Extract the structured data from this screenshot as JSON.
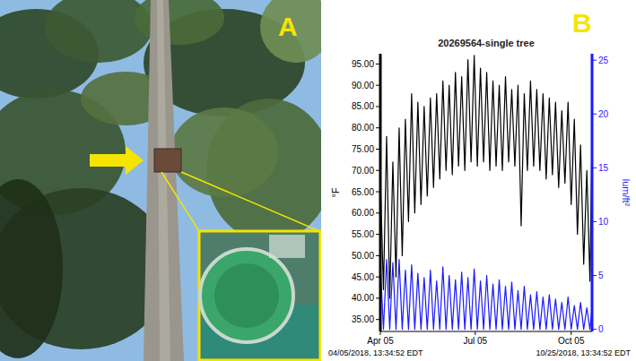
{
  "panel_labels": [
    "A",
    "B"
  ],
  "chart_data": {
    "type": "line",
    "title": "20269564-single tree",
    "y_label": "°F",
    "y2_label": "lum/ft²",
    "annotations": [
      "04/05/2018, 13:34:52 EDT",
      "10/25/2018, 13:34:52 EDT"
    ],
    "x": [
      "2018-04-05",
      "2018-04-08",
      "2018-04-11",
      "2018-04-14",
      "2018-04-17",
      "2018-04-20",
      "2018-04-23",
      "2018-04-26",
      "2018-04-29",
      "2018-05-02",
      "2018-05-05",
      "2018-05-08",
      "2018-05-11",
      "2018-05-14",
      "2018-05-17",
      "2018-05-20",
      "2018-05-23",
      "2018-05-26",
      "2018-05-29",
      "2018-06-01",
      "2018-06-04",
      "2018-06-07",
      "2018-06-10",
      "2018-06-13",
      "2018-06-16",
      "2018-06-19",
      "2018-06-22",
      "2018-06-25",
      "2018-06-28",
      "2018-07-01",
      "2018-07-04",
      "2018-07-07",
      "2018-07-10",
      "2018-07-13",
      "2018-07-16",
      "2018-07-19",
      "2018-07-22",
      "2018-07-25",
      "2018-07-28",
      "2018-07-31",
      "2018-08-03",
      "2018-08-06",
      "2018-08-09",
      "2018-08-12",
      "2018-08-15",
      "2018-08-18",
      "2018-08-21",
      "2018-08-24",
      "2018-08-27",
      "2018-08-30",
      "2018-09-02",
      "2018-09-05",
      "2018-09-08",
      "2018-09-11",
      "2018-09-14",
      "2018-09-17",
      "2018-09-20",
      "2018-09-23",
      "2018-09-26",
      "2018-09-29",
      "2018-10-02",
      "2018-10-05",
      "2018-10-08",
      "2018-10-11",
      "2018-10-14",
      "2018-10-17",
      "2018-10-20",
      "2018-10-23",
      "2018-10-25"
    ],
    "series": [
      {
        "color": "#000000",
        "axis": "y",
        "values": [
          68,
          42,
          78,
          40,
          72,
          45,
          80,
          50,
          82,
          58,
          88,
          60,
          86,
          62,
          85,
          64,
          87,
          66,
          88,
          68,
          91,
          70,
          90,
          69,
          93,
          71,
          92,
          70,
          96,
          72,
          97,
          71,
          94,
          72,
          93,
          70,
          91,
          71,
          90,
          70,
          92,
          72,
          89,
          71,
          90,
          57,
          88,
          70,
          91,
          71,
          89,
          70,
          88,
          68,
          87,
          69,
          86,
          66,
          84,
          67,
          86,
          62,
          82,
          55,
          76,
          48,
          70,
          44,
          78
        ]
      },
      {
        "color": "#1a1aff",
        "axis": "y2",
        "values": [
          6,
          0,
          6.5,
          0,
          6.2,
          0,
          6.5,
          0,
          5.5,
          0,
          6,
          0,
          5.2,
          0,
          4.8,
          0,
          5.5,
          0,
          4.5,
          0,
          5.8,
          0,
          5,
          0,
          4.6,
          0,
          5.3,
          0,
          4.8,
          0,
          5.6,
          0,
          4.5,
          0,
          5,
          0,
          4.2,
          0,
          4.6,
          0,
          4,
          0,
          4.4,
          0,
          3.6,
          0,
          4,
          0,
          3.2,
          0,
          3.5,
          0,
          3,
          0,
          3.2,
          0,
          2.8,
          0,
          2.5,
          0,
          3,
          0,
          2.2,
          0,
          2.5,
          0,
          2,
          0,
          2
        ]
      }
    ],
    "xlim": [
      "2018-04-05",
      "2018-10-25"
    ],
    "xticks": [
      {
        "value": "2018-04-05",
        "label": "Apr 05"
      },
      {
        "value": "2018-07-05",
        "label": "Jul 05"
      },
      {
        "value": "2018-10-05",
        "label": "Oct 05"
      }
    ],
    "ylim": [
      32.2,
      97.4
    ],
    "yticks": [
      {
        "value": 35,
        "label": "35.00"
      },
      {
        "value": 40,
        "label": "40.00"
      },
      {
        "value": 45,
        "label": "45.00"
      },
      {
        "value": 50,
        "label": "50.00"
      },
      {
        "value": 55,
        "label": "55.00"
      },
      {
        "value": 60,
        "label": "60.00"
      },
      {
        "value": 65,
        "label": "65.00"
      },
      {
        "value": 70,
        "label": "70.00"
      },
      {
        "value": 75,
        "label": "75.00"
      },
      {
        "value": 80,
        "label": "80.00"
      },
      {
        "value": 85,
        "label": "85.00"
      },
      {
        "value": 90,
        "label": "90.00"
      },
      {
        "value": 95,
        "label": "95.00"
      }
    ],
    "y2lim": [
      -0.2,
      25.6
    ],
    "y2ticks": [
      0,
      5,
      10,
      15,
      20,
      25
    ],
    "grid": false
  }
}
